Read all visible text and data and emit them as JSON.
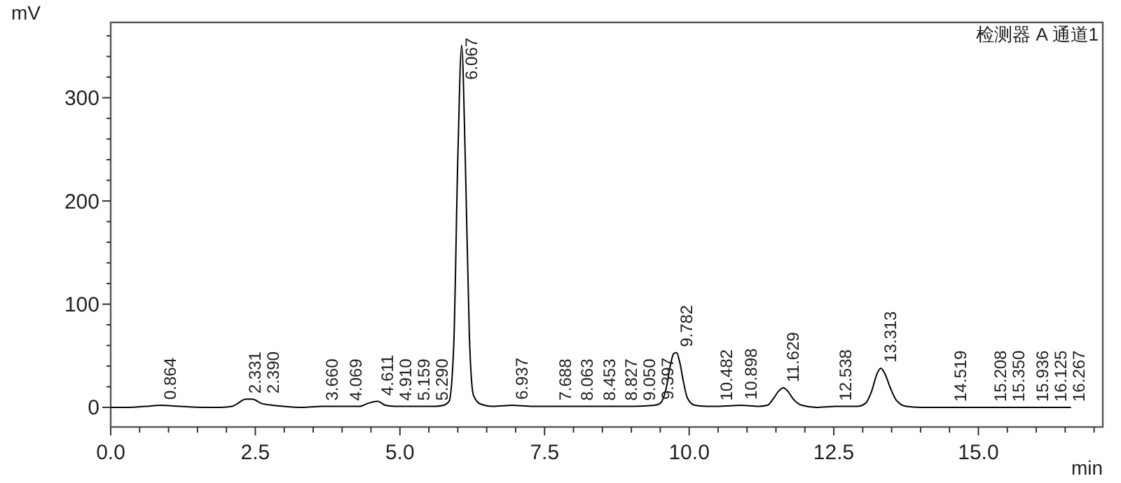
{
  "chart_data": {
    "type": "line",
    "title": "检测器 A 通道1",
    "xlabel": "min",
    "ylabel": "mV",
    "x": [
      0.0,
      0.3,
      0.6,
      0.864,
      1.2,
      1.6,
      1.9,
      2.1,
      2.2,
      2.331,
      2.45,
      2.6,
      2.8,
      3.0,
      3.3,
      3.66,
      4.069,
      4.3,
      4.45,
      4.611,
      4.75,
      4.91,
      5.159,
      5.29,
      5.6,
      5.75,
      5.85,
      5.93,
      6.0,
      6.067,
      6.13,
      6.2,
      6.27,
      6.4,
      6.6,
      6.937,
      7.3,
      7.688,
      8.063,
      8.453,
      8.827,
      9.05,
      9.397,
      9.5,
      9.6,
      9.68,
      9.73,
      9.782,
      9.84,
      9.9,
      9.97,
      10.1,
      10.3,
      10.482,
      10.898,
      11.2,
      11.35,
      11.45,
      11.55,
      11.629,
      11.7,
      11.8,
      11.95,
      12.2,
      12.538,
      12.9,
      13.05,
      13.15,
      13.25,
      13.313,
      13.38,
      13.47,
      13.58,
      13.75,
      14.0,
      14.519,
      15.208,
      15.35,
      15.936,
      16.125,
      16.267,
      16.6
    ],
    "series": [
      {
        "color": "#000000",
        "values": [
          0,
          0,
          1,
          2,
          1,
          0,
          0,
          1,
          4,
          8,
          8,
          4,
          2,
          1,
          0,
          1,
          1,
          1,
          4,
          6,
          2,
          1,
          1,
          1,
          1,
          2,
          6,
          60,
          240,
          351,
          240,
          70,
          12,
          3,
          1,
          2,
          1,
          1,
          1,
          1,
          1,
          1,
          2,
          4,
          18,
          42,
          52,
          53,
          43,
          25,
          9,
          2,
          1,
          1,
          2,
          1,
          2,
          8,
          16,
          19,
          16,
          8,
          2,
          0,
          1,
          1,
          4,
          15,
          33,
          38,
          33,
          20,
          7,
          1,
          0,
          0,
          0,
          0,
          0,
          0,
          0,
          0
        ]
      }
    ],
    "xlim": [
      0,
      17.15
    ],
    "ylim": [
      -19,
      373
    ],
    "xticks": [
      {
        "value": 0,
        "label": "0.0"
      },
      {
        "value": 0.5,
        "label": null
      },
      {
        "value": 1,
        "label": null
      },
      {
        "value": 1.5,
        "label": null
      },
      {
        "value": 2,
        "label": null
      },
      {
        "value": 2.5,
        "label": "2.5"
      },
      {
        "value": 3,
        "label": null
      },
      {
        "value": 3.5,
        "label": null
      },
      {
        "value": 4,
        "label": null
      },
      {
        "value": 4.5,
        "label": null
      },
      {
        "value": 5,
        "label": "5.0"
      },
      {
        "value": 5.5,
        "label": null
      },
      {
        "value": 6,
        "label": null
      },
      {
        "value": 6.5,
        "label": null
      },
      {
        "value": 7,
        "label": null
      },
      {
        "value": 7.5,
        "label": "7.5"
      },
      {
        "value": 8,
        "label": null
      },
      {
        "value": 8.5,
        "label": null
      },
      {
        "value": 9,
        "label": null
      },
      {
        "value": 9.5,
        "label": null
      },
      {
        "value": 10,
        "label": "10.0"
      },
      {
        "value": 10.5,
        "label": null
      },
      {
        "value": 11,
        "label": null
      },
      {
        "value": 11.5,
        "label": null
      },
      {
        "value": 12,
        "label": null
      },
      {
        "value": 12.5,
        "label": "12.5"
      },
      {
        "value": 13,
        "label": null
      },
      {
        "value": 13.5,
        "label": null
      },
      {
        "value": 14,
        "label": null
      },
      {
        "value": 14.5,
        "label": null
      },
      {
        "value": 15,
        "label": "15.0"
      },
      {
        "value": 15.5,
        "label": null
      },
      {
        "value": 16,
        "label": null
      },
      {
        "value": 16.5,
        "label": null
      },
      {
        "value": 17,
        "label": null
      }
    ],
    "yticks": [
      0,
      {
        "value": 20,
        "label": null
      },
      {
        "value": 40,
        "label": null
      },
      {
        "value": 60,
        "label": null
      },
      {
        "value": 80,
        "label": null
      },
      100,
      {
        "value": 120,
        "label": null
      },
      {
        "value": 140,
        "label": null
      },
      {
        "value": 160,
        "label": null
      },
      {
        "value": 180,
        "label": null
      },
      200,
      {
        "value": 220,
        "label": null
      },
      {
        "value": 240,
        "label": null
      },
      {
        "value": 260,
        "label": null
      },
      {
        "value": 280,
        "label": null
      },
      300,
      {
        "value": 320,
        "label": null
      },
      {
        "value": 340,
        "label": null
      },
      {
        "value": 360,
        "label": null
      }
    ],
    "annotations": [
      {
        "text": "0.864",
        "x": 0.864,
        "y": 2
      },
      {
        "text": "2.331",
        "x": 2.331,
        "y": 8
      },
      {
        "text": "2.390",
        "x": 2.39,
        "y": 8
      },
      {
        "text": "3.660",
        "x": 3.66,
        "y": 1
      },
      {
        "text": "4.069",
        "x": 4.069,
        "y": 1
      },
      {
        "text": "4.611",
        "x": 4.611,
        "y": 6
      },
      {
        "text": "4.910",
        "x": 4.91,
        "y": 1
      },
      {
        "text": "5.159",
        "x": 5.159,
        "y": 1
      },
      {
        "text": "5.290",
        "x": 5.29,
        "y": 1
      },
      {
        "text": "6.067",
        "x": 6.067,
        "y": 351
      },
      {
        "text": "6.937",
        "x": 6.937,
        "y": 2
      },
      {
        "text": "7.688",
        "x": 7.688,
        "y": 1
      },
      {
        "text": "8.063",
        "x": 8.063,
        "y": 1
      },
      {
        "text": "8.453",
        "x": 8.453,
        "y": 1
      },
      {
        "text": "8.827",
        "x": 8.827,
        "y": 1
      },
      {
        "text": "9.050",
        "x": 9.05,
        "y": 1
      },
      {
        "text": "9.397",
        "x": 9.397,
        "y": 2
      },
      {
        "text": "9.782",
        "x": 9.782,
        "y": 53
      },
      {
        "text": "10.482",
        "x": 10.482,
        "y": 1
      },
      {
        "text": "10.898",
        "x": 10.898,
        "y": 2
      },
      {
        "text": "11.629",
        "x": 11.629,
        "y": 19
      },
      {
        "text": "12.538",
        "x": 12.538,
        "y": 1
      },
      {
        "text": "13.313",
        "x": 13.313,
        "y": 38
      },
      {
        "text": "14.519",
        "x": 14.519,
        "y": 0
      },
      {
        "text": "15.208",
        "x": 15.208,
        "y": 0
      },
      {
        "text": "15.350",
        "x": 15.35,
        "y": 0
      },
      {
        "text": "15.936",
        "x": 15.936,
        "y": 0
      },
      {
        "text": "16.125",
        "x": 16.125,
        "y": 0
      },
      {
        "text": "16.267",
        "x": 16.267,
        "y": 0
      }
    ],
    "grid": false,
    "marker": "none",
    "line_style": "solid"
  }
}
